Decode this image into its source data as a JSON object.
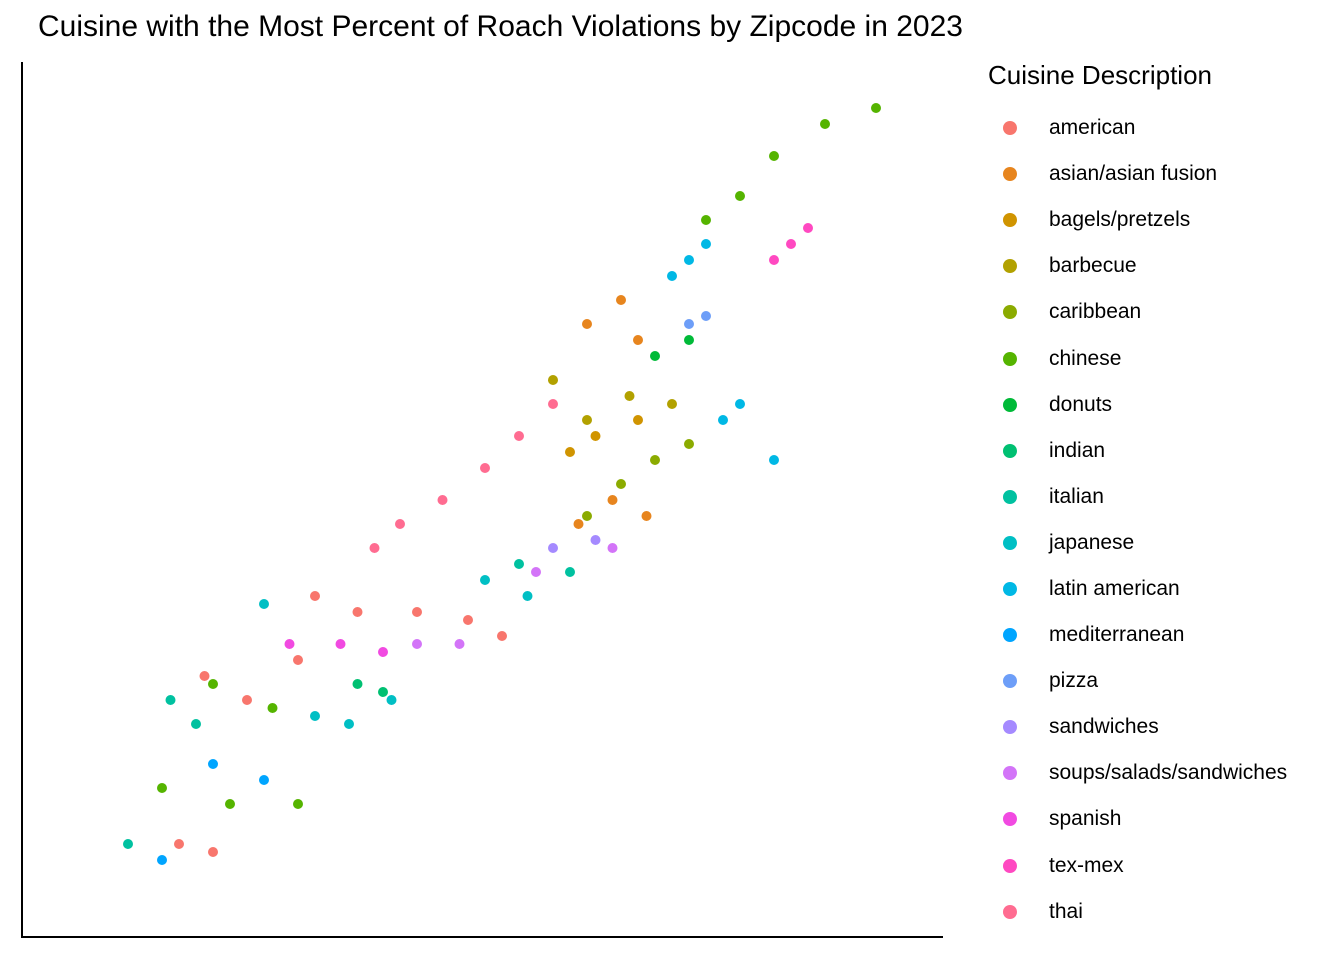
{
  "chart_data": {
    "type": "scatter",
    "title": "Cuisine with the Most Percent of Roach Violations by Zipcode in 2023",
    "xlabel": "",
    "ylabel": "",
    "grid": false,
    "legend": {
      "title": "Cuisine Description",
      "placement": "right",
      "entries": [
        {
          "name": "american",
          "color": "#F8766D"
        },
        {
          "name": "asian/asian fusion",
          "color": "#E7851E"
        },
        {
          "name": "bagels/pretzels",
          "color": "#D09400"
        },
        {
          "name": "barbecue",
          "color": "#B2A100"
        },
        {
          "name": "caribbean",
          "color": "#8BAB00"
        },
        {
          "name": "chinese",
          "color": "#55B400"
        },
        {
          "name": "donuts",
          "color": "#00BA38"
        },
        {
          "name": "indian",
          "color": "#00C072"
        },
        {
          "name": "italian",
          "color": "#00C1A0"
        },
        {
          "name": "japanese",
          "color": "#00BFC4"
        },
        {
          "name": "latin american",
          "color": "#00B8E5"
        },
        {
          "name": "mediterranean",
          "color": "#00A5FF"
        },
        {
          "name": "pizza",
          "color": "#6D9EF8"
        },
        {
          "name": "sandwiches",
          "color": "#A58AFF"
        },
        {
          "name": "soups/salads/sandwiches",
          "color": "#D374F8"
        },
        {
          "name": "spanish",
          "color": "#F14AE1"
        },
        {
          "name": "tex-mex",
          "color": "#FF49C1"
        },
        {
          "name": "thai",
          "color": "#FF6C91"
        }
      ]
    },
    "series": [
      {
        "name": "american",
        "points": [
          [
            0.17,
            0.28
          ],
          [
            0.22,
            0.25
          ],
          [
            0.28,
            0.3
          ],
          [
            0.35,
            0.36
          ],
          [
            0.42,
            0.36
          ],
          [
            0.48,
            0.35
          ],
          [
            0.52,
            0.33
          ],
          [
            0.3,
            0.38
          ],
          [
            0.14,
            0.07
          ],
          [
            0.18,
            0.06
          ]
        ]
      },
      {
        "name": "thai",
        "points": [
          [
            0.4,
            0.47
          ],
          [
            0.45,
            0.5
          ],
          [
            0.5,
            0.54
          ],
          [
            0.54,
            0.58
          ],
          [
            0.58,
            0.62
          ],
          [
            0.37,
            0.44
          ]
        ]
      },
      {
        "name": "tex-mex",
        "points": [
          [
            0.86,
            0.82
          ],
          [
            0.88,
            0.84
          ],
          [
            0.84,
            0.8
          ]
        ]
      },
      {
        "name": "spanish",
        "points": [
          [
            0.27,
            0.32
          ],
          [
            0.33,
            0.32
          ],
          [
            0.38,
            0.31
          ]
        ]
      },
      {
        "name": "soups/salads/sandwiches",
        "points": [
          [
            0.42,
            0.32
          ],
          [
            0.47,
            0.32
          ],
          [
            0.56,
            0.41
          ],
          [
            0.65,
            0.44
          ]
        ]
      },
      {
        "name": "sandwiches",
        "points": [
          [
            0.58,
            0.44
          ],
          [
            0.63,
            0.45
          ]
        ]
      },
      {
        "name": "japanese",
        "points": [
          [
            0.24,
            0.37
          ],
          [
            0.3,
            0.23
          ],
          [
            0.34,
            0.22
          ],
          [
            0.39,
            0.25
          ],
          [
            0.5,
            0.4
          ],
          [
            0.55,
            0.38
          ]
        ]
      },
      {
        "name": "italian",
        "points": [
          [
            0.13,
            0.25
          ],
          [
            0.16,
            0.22
          ],
          [
            0.54,
            0.42
          ],
          [
            0.6,
            0.41
          ],
          [
            0.08,
            0.07
          ]
        ]
      },
      {
        "name": "indian",
        "points": [
          [
            0.35,
            0.27
          ],
          [
            0.38,
            0.26
          ]
        ]
      },
      {
        "name": "mediterranean",
        "points": [
          [
            0.18,
            0.17
          ],
          [
            0.24,
            0.15
          ],
          [
            0.12,
            0.05
          ]
        ]
      },
      {
        "name": "chinese",
        "points": [
          [
            0.12,
            0.14
          ],
          [
            0.2,
            0.12
          ],
          [
            0.28,
            0.12
          ],
          [
            0.18,
            0.27
          ],
          [
            0.25,
            0.24
          ],
          [
            0.76,
            0.85
          ],
          [
            0.8,
            0.88
          ],
          [
            0.84,
            0.93
          ],
          [
            0.9,
            0.97
          ],
          [
            0.96,
            0.99
          ]
        ]
      },
      {
        "name": "caribbean",
        "points": [
          [
            0.66,
            0.52
          ],
          [
            0.7,
            0.55
          ],
          [
            0.74,
            0.57
          ],
          [
            0.62,
            0.48
          ]
        ]
      },
      {
        "name": "donuts",
        "points": [
          [
            0.7,
            0.68
          ],
          [
            0.74,
            0.7
          ]
        ]
      },
      {
        "name": "pizza",
        "points": [
          [
            0.74,
            0.72
          ],
          [
            0.76,
            0.73
          ]
        ]
      },
      {
        "name": "latin american",
        "points": [
          [
            0.72,
            0.78
          ],
          [
            0.74,
            0.8
          ],
          [
            0.76,
            0.82
          ],
          [
            0.78,
            0.6
          ],
          [
            0.8,
            0.62
          ],
          [
            0.84,
            0.55
          ]
        ]
      },
      {
        "name": "barbecue",
        "points": [
          [
            0.58,
            0.65
          ],
          [
            0.62,
            0.6
          ],
          [
            0.67,
            0.63
          ],
          [
            0.72,
            0.62
          ]
        ]
      },
      {
        "name": "bagels/pretzels",
        "points": [
          [
            0.6,
            0.56
          ],
          [
            0.63,
            0.58
          ],
          [
            0.68,
            0.6
          ]
        ]
      },
      {
        "name": "asian/asian fusion",
        "points": [
          [
            0.62,
            0.72
          ],
          [
            0.66,
            0.75
          ],
          [
            0.68,
            0.7
          ],
          [
            0.61,
            0.47
          ],
          [
            0.65,
            0.5
          ],
          [
            0.69,
            0.48
          ]
        ]
      }
    ]
  }
}
